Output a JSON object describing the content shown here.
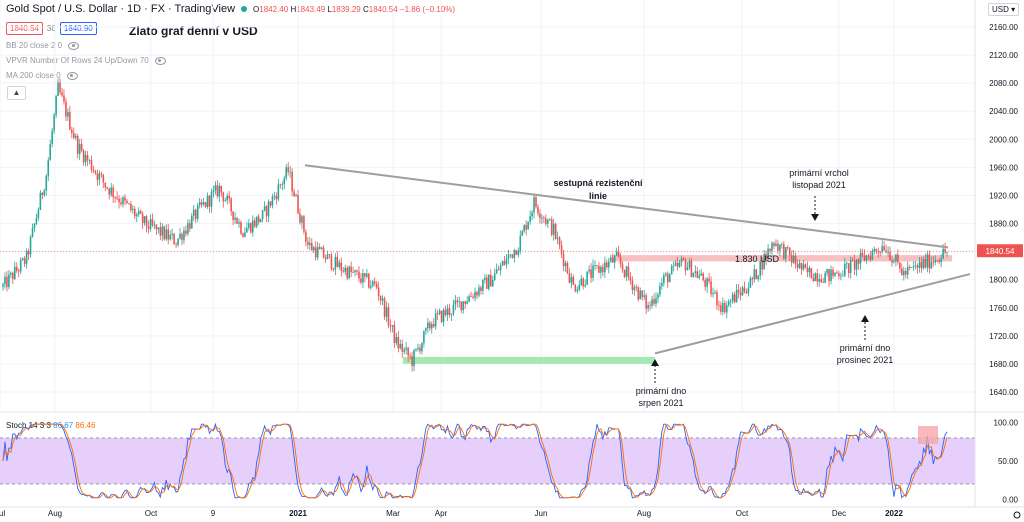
{
  "header": {
    "symbol": "Gold Spot / U.S. Dollar · 1D · FX · TradingView",
    "ohlc": {
      "o": "1842.40",
      "h": "1843.49",
      "l": "1839.29",
      "c": "1840.54",
      "chg": "−1.86 (−0.10%)"
    },
    "bid": "1840.54",
    "spread": "36",
    "ask": "1840.90",
    "subtitle": "Zlato graf denní v USD",
    "indicators": [
      "BB 20 close 2 0",
      "VPVR Number Of Rows 24 Up/Down 70",
      "MA 200 close 0"
    ],
    "currency": "USD",
    "stoch": {
      "params": "Stoch 14 3 3",
      "k": "86.67",
      "d": "86.46"
    }
  },
  "chart_data": {
    "type": "candlestick",
    "title": "Zlato graf denní v USD",
    "ylim": [
      1620,
      2180
    ],
    "y_ticks": [
      1640,
      1680,
      1720,
      1760,
      1800,
      1840,
      1880,
      1920,
      1960,
      2000,
      2040,
      2080,
      2120,
      2160
    ],
    "y_tick_labels": [
      "1640.00",
      "1680.00",
      "1720.00",
      "1760.00",
      "1800.00",
      "1840.00",
      "1880.00",
      "1920.00",
      "1960.00",
      "2000.00",
      "2040.00",
      "2080.00",
      "2120.00",
      "2160.00"
    ],
    "x_tick_labels": [
      "Jul",
      "Aug",
      "Oct",
      "9",
      "2021",
      "Mar",
      "Apr",
      "Jun",
      "Aug",
      "Oct",
      "Dec",
      "2022"
    ],
    "last_price": "1840.54",
    "anchors": [
      [
        0,
        1790
      ],
      [
        12,
        1830
      ],
      [
        22,
        1950
      ],
      [
        28,
        2072
      ],
      [
        38,
        1990
      ],
      [
        52,
        1935
      ],
      [
        72,
        1880
      ],
      [
        88,
        1855
      ],
      [
        100,
        1900
      ],
      [
        110,
        1930
      ],
      [
        122,
        1870
      ],
      [
        132,
        1890
      ],
      [
        145,
        1955
      ],
      [
        155,
        1850
      ],
      [
        170,
        1820
      ],
      [
        190,
        1790
      ],
      [
        200,
        1710
      ],
      [
        208,
        1685
      ],
      [
        218,
        1740
      ],
      [
        232,
        1765
      ],
      [
        248,
        1800
      ],
      [
        262,
        1850
      ],
      [
        270,
        1910
      ],
      [
        280,
        1870
      ],
      [
        290,
        1790
      ],
      [
        300,
        1810
      ],
      [
        312,
        1830
      ],
      [
        328,
        1760
      ],
      [
        336,
        1800
      ],
      [
        346,
        1825
      ],
      [
        356,
        1800
      ],
      [
        366,
        1760
      ],
      [
        380,
        1795
      ],
      [
        392,
        1855
      ],
      [
        408,
        1810
      ],
      [
        420,
        1805
      ],
      [
        432,
        1820
      ],
      [
        448,
        1850
      ],
      [
        458,
        1808
      ],
      [
        470,
        1825
      ],
      [
        480,
        1840
      ]
    ],
    "annotations": [
      {
        "text": "sestupná rezistenční",
        "text2": "linie"
      },
      {
        "text": "primární vrchol",
        "text2": "listopad 2021"
      },
      {
        "text": "1.830 USD"
      },
      {
        "text": "primární dno",
        "text2": "prosinec 2021"
      },
      {
        "text": "primární dno",
        "text2": "srpen 2021"
      }
    ],
    "stochastic": {
      "levels": [
        80,
        20
      ],
      "y_tick_labels": [
        "100.00",
        "50.00",
        "0.00"
      ],
      "k_label": "86.67",
      "d_label": "86.46"
    }
  },
  "colors": {
    "up": "#26a69a",
    "down": "#ef5350",
    "trend": "#9e9e9e",
    "support_zone": "#a5e8b4",
    "resist_zone": "#f7c1c1",
    "stoch_band": "#e7cffc",
    "stoch_k": "#2962ff",
    "stoch_d": "#ff6d00"
  }
}
